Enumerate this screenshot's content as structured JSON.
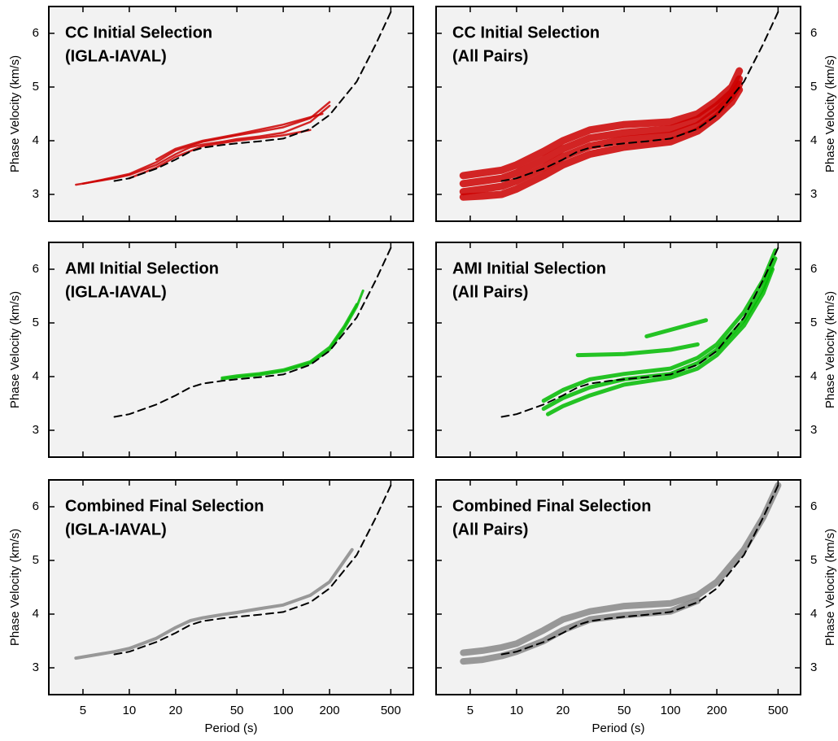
{
  "chart_data": [
    {
      "type": "line",
      "title": "CC Initial Selection",
      "subtitle": "(IGLA-IAVAL)",
      "ylabel": "Phase Velocity (km/s)",
      "x_tick_labels": false,
      "log_x": true,
      "line_width": 2.5,
      "xlim": [
        3,
        700
      ],
      "ylim": [
        2.5,
        6.5
      ],
      "xticks": [
        5,
        10,
        20,
        50,
        100,
        200,
        500
      ],
      "yticks": [
        3,
        4,
        5,
        6
      ],
      "series": [
        {
          "color": "#cc0000",
          "x": [
            4.5,
            6,
            8,
            10,
            15,
            20,
            25,
            30,
            40,
            50,
            70,
            100,
            150,
            200
          ],
          "values": [
            3.18,
            3.24,
            3.3,
            3.36,
            3.55,
            3.75,
            3.88,
            3.93,
            3.98,
            4.03,
            4.08,
            4.15,
            4.35,
            4.65
          ]
        },
        {
          "color": "#cc0000",
          "x": [
            5,
            8,
            10,
            15,
            20,
            30,
            50,
            70,
            100,
            150,
            200
          ],
          "values": [
            3.2,
            3.32,
            3.38,
            3.6,
            3.82,
            3.98,
            4.1,
            4.17,
            4.25,
            4.42,
            4.72
          ]
        },
        {
          "color": "#cc0000",
          "x": [
            10,
            15,
            20,
            30,
            50,
            100,
            150
          ],
          "values": [
            3.3,
            3.5,
            3.7,
            3.9,
            4.0,
            4.1,
            4.2
          ]
        },
        {
          "color": "#cc0000",
          "x": [
            15,
            20,
            30,
            50,
            100,
            180
          ],
          "values": [
            3.65,
            3.85,
            4.0,
            4.12,
            4.3,
            4.5
          ]
        },
        {
          "color": "#000000",
          "dash": true,
          "x": [
            8,
            10,
            15,
            20,
            25,
            30,
            40,
            50,
            70,
            100,
            150,
            200,
            300,
            400,
            500
          ],
          "values": [
            3.25,
            3.3,
            3.48,
            3.65,
            3.8,
            3.87,
            3.92,
            3.95,
            3.99,
            4.04,
            4.22,
            4.48,
            5.1,
            5.8,
            6.4
          ]
        }
      ]
    },
    {
      "type": "line",
      "title": "CC Initial Selection",
      "subtitle": "(All Pairs)",
      "ylabel": "Phase Velocity (km/s)",
      "x_tick_labels": false,
      "log_x": true,
      "line_width": 9,
      "xlim": [
        3,
        700
      ],
      "ylim": [
        2.5,
        6.5
      ],
      "xticks": [
        5,
        10,
        20,
        50,
        100,
        200,
        500
      ],
      "yticks": [
        3,
        4,
        5,
        6
      ],
      "series": [
        {
          "color": "#cc0000",
          "x": [
            4.5,
            6,
            8,
            10,
            15,
            20,
            30,
            50,
            100,
            150,
            200,
            250,
            280
          ],
          "values": [
            3.35,
            3.4,
            3.45,
            3.55,
            3.8,
            4.0,
            4.2,
            4.3,
            4.35,
            4.5,
            4.75,
            5.0,
            5.3
          ]
        },
        {
          "color": "#cc0000",
          "x": [
            4.5,
            6,
            8,
            10,
            15,
            20,
            30,
            50,
            100,
            150,
            200,
            250,
            280
          ],
          "values": [
            3.2,
            3.25,
            3.3,
            3.4,
            3.65,
            3.85,
            4.05,
            4.15,
            4.22,
            4.4,
            4.65,
            4.9,
            5.15
          ]
        },
        {
          "color": "#cc0000",
          "x": [
            4.5,
            6,
            8,
            10,
            15,
            20,
            30,
            50,
            100,
            150,
            200,
            250,
            280
          ],
          "values": [
            3.05,
            3.1,
            3.15,
            3.25,
            3.5,
            3.7,
            3.9,
            4.02,
            4.1,
            4.28,
            4.55,
            4.82,
            5.05
          ]
        },
        {
          "color": "#cc0000",
          "x": [
            4.5,
            6,
            8,
            10,
            15,
            20,
            30,
            50,
            100,
            150,
            200,
            250,
            280
          ],
          "values": [
            2.95,
            2.97,
            3.0,
            3.1,
            3.35,
            3.55,
            3.75,
            3.88,
            3.98,
            4.18,
            4.45,
            4.72,
            4.95
          ]
        },
        {
          "color": "#000000",
          "dash": true,
          "x": [
            8,
            10,
            15,
            20,
            25,
            30,
            40,
            50,
            70,
            100,
            150,
            200,
            300,
            400,
            500
          ],
          "values": [
            3.25,
            3.3,
            3.48,
            3.65,
            3.8,
            3.87,
            3.92,
            3.95,
            3.99,
            4.04,
            4.22,
            4.48,
            5.1,
            5.8,
            6.4
          ]
        }
      ]
    },
    {
      "type": "line",
      "title": "AMI Initial Selection",
      "subtitle": "(IGLA-IAVAL)",
      "ylabel": "Phase Velocity (km/s)",
      "x_tick_labels": false,
      "log_x": true,
      "line_width": 3,
      "xlim": [
        3,
        700
      ],
      "ylim": [
        2.5,
        6.5
      ],
      "xticks": [
        5,
        10,
        20,
        50,
        100,
        200,
        500
      ],
      "yticks": [
        3,
        4,
        5,
        6
      ],
      "series": [
        {
          "color": "#00bb00",
          "x": [
            40,
            50,
            70,
            100,
            150,
            200,
            250,
            300,
            330
          ],
          "values": [
            3.95,
            3.99,
            4.03,
            4.1,
            4.25,
            4.5,
            4.9,
            5.3,
            5.6
          ]
        },
        {
          "color": "#00bb00",
          "x": [
            40,
            50,
            70,
            100,
            150,
            200,
            250,
            300
          ],
          "values": [
            3.98,
            4.02,
            4.06,
            4.13,
            4.28,
            4.55,
            4.95,
            5.35
          ]
        },
        {
          "color": "#000000",
          "dash": true,
          "x": [
            8,
            10,
            15,
            20,
            25,
            30,
            40,
            50,
            70,
            100,
            150,
            200,
            300,
            400,
            500
          ],
          "values": [
            3.25,
            3.3,
            3.48,
            3.65,
            3.8,
            3.87,
            3.92,
            3.95,
            3.99,
            4.04,
            4.22,
            4.48,
            5.1,
            5.8,
            6.4
          ]
        }
      ]
    },
    {
      "type": "line",
      "title": "AMI Initial Selection",
      "subtitle": "(All Pairs)",
      "ylabel": "Phase Velocity (km/s)",
      "x_tick_labels": false,
      "log_x": true,
      "line_width": 5,
      "xlim": [
        3,
        700
      ],
      "ylim": [
        2.5,
        6.5
      ],
      "xticks": [
        5,
        10,
        20,
        50,
        100,
        200,
        500
      ],
      "yticks": [
        3,
        4,
        5,
        6
      ],
      "series": [
        {
          "color": "#00bb00",
          "x": [
            15,
            20,
            30,
            50,
            100,
            150,
            200,
            300,
            400,
            480
          ],
          "values": [
            3.55,
            3.75,
            3.95,
            4.05,
            4.15,
            4.35,
            4.6,
            5.2,
            5.8,
            6.35
          ]
        },
        {
          "color": "#00bb00",
          "x": [
            15,
            20,
            30,
            50,
            100,
            150,
            200,
            300,
            400,
            480
          ],
          "values": [
            3.4,
            3.6,
            3.8,
            3.95,
            4.05,
            4.25,
            4.5,
            5.05,
            5.65,
            6.2
          ]
        },
        {
          "color": "#00bb00",
          "x": [
            16,
            20,
            30,
            50,
            100,
            150,
            200,
            300,
            400,
            460
          ],
          "values": [
            3.3,
            3.45,
            3.65,
            3.85,
            3.98,
            4.15,
            4.4,
            4.95,
            5.55,
            6.0
          ]
        },
        {
          "color": "#00bb00",
          "x": [
            25,
            50,
            100,
            150
          ],
          "values": [
            4.4,
            4.42,
            4.5,
            4.6
          ]
        },
        {
          "color": "#00bb00",
          "x": [
            70,
            170
          ],
          "values": [
            4.75,
            5.05
          ]
        },
        {
          "color": "#000000",
          "dash": true,
          "x": [
            8,
            10,
            15,
            20,
            25,
            30,
            40,
            50,
            70,
            100,
            150,
            200,
            300,
            400,
            500
          ],
          "values": [
            3.25,
            3.3,
            3.48,
            3.65,
            3.8,
            3.87,
            3.92,
            3.95,
            3.99,
            4.04,
            4.22,
            4.48,
            5.1,
            5.8,
            6.4
          ]
        }
      ]
    },
    {
      "type": "line",
      "title": "Combined Final Selection",
      "subtitle": "(IGLA-IAVAL)",
      "ylabel": "Phase Velocity (km/s)",
      "xlabel": "Period (s)",
      "x_tick_labels": true,
      "log_x": true,
      "line_width": 4,
      "xlim": [
        3,
        700
      ],
      "ylim": [
        2.5,
        6.5
      ],
      "xticks": [
        5,
        10,
        20,
        50,
        100,
        200,
        500
      ],
      "yticks": [
        3,
        4,
        5,
        6
      ],
      "series": [
        {
          "color": "#888888",
          "x": [
            4.5,
            8,
            10,
            15,
            20,
            25,
            30,
            40,
            50,
            70,
            100,
            150,
            200,
            280
          ],
          "values": [
            3.18,
            3.3,
            3.36,
            3.55,
            3.75,
            3.88,
            3.93,
            3.99,
            4.03,
            4.1,
            4.17,
            4.35,
            4.6,
            5.2
          ]
        },
        {
          "color": "#000000",
          "dash": true,
          "x": [
            8,
            10,
            15,
            20,
            25,
            30,
            40,
            50,
            70,
            100,
            150,
            200,
            300,
            400,
            500
          ],
          "values": [
            3.25,
            3.3,
            3.48,
            3.65,
            3.8,
            3.87,
            3.92,
            3.95,
            3.99,
            4.04,
            4.22,
            4.48,
            5.1,
            5.8,
            6.4
          ]
        }
      ]
    },
    {
      "type": "line",
      "title": "Combined Final Selection",
      "subtitle": "(All Pairs)",
      "ylabel": "Phase Velocity (km/s)",
      "xlabel": "Period (s)",
      "x_tick_labels": true,
      "log_x": true,
      "line_width": 8,
      "xlim": [
        3,
        700
      ],
      "ylim": [
        2.5,
        6.5
      ],
      "xticks": [
        5,
        10,
        20,
        50,
        100,
        200,
        500
      ],
      "yticks": [
        3,
        4,
        5,
        6
      ],
      "series": [
        {
          "color": "#888888",
          "x": [
            4.5,
            6,
            8,
            10,
            15,
            20,
            30,
            50,
            100,
            150,
            200,
            300,
            400,
            500
          ],
          "values": [
            3.28,
            3.32,
            3.38,
            3.45,
            3.7,
            3.9,
            4.05,
            4.15,
            4.2,
            4.35,
            4.6,
            5.2,
            5.8,
            6.4
          ]
        },
        {
          "color": "#888888",
          "x": [
            4.5,
            6,
            8,
            10,
            15,
            20,
            30,
            50,
            100,
            150
          ],
          "values": [
            3.12,
            3.15,
            3.22,
            3.3,
            3.5,
            3.7,
            3.9,
            3.98,
            4.05,
            4.25
          ]
        },
        {
          "color": "#000000",
          "dash": true,
          "x": [
            8,
            10,
            15,
            20,
            25,
            30,
            40,
            50,
            70,
            100,
            150,
            200,
            300,
            400,
            500
          ],
          "values": [
            3.25,
            3.3,
            3.48,
            3.65,
            3.8,
            3.87,
            3.92,
            3.95,
            3.99,
            4.04,
            4.22,
            4.48,
            5.1,
            5.8,
            6.4
          ]
        }
      ]
    }
  ]
}
